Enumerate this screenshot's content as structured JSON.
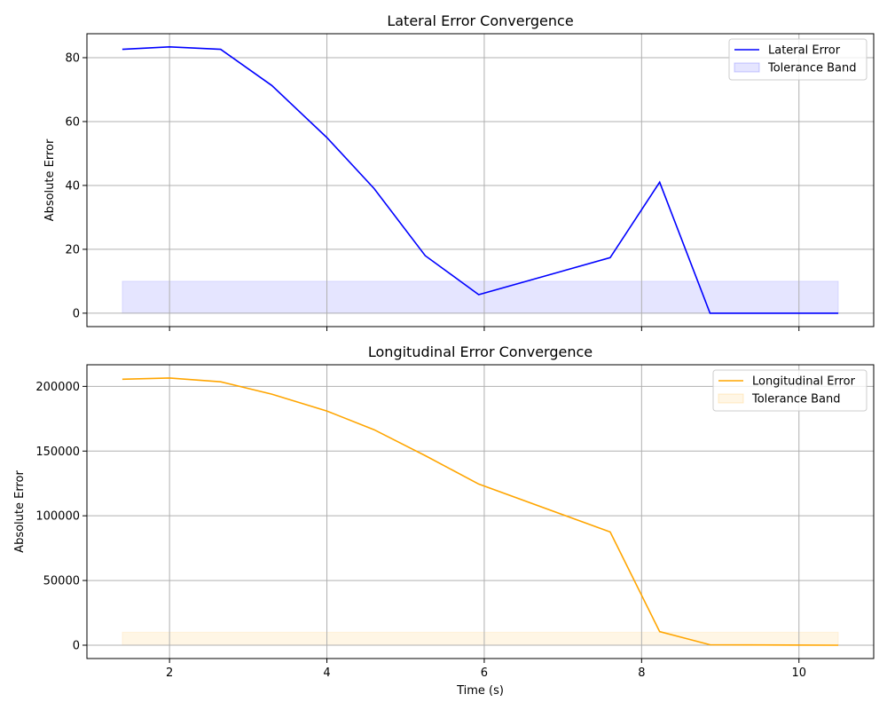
{
  "chart_data": [
    {
      "type": "line",
      "title": "Lateral Error Convergence",
      "xlabel": "",
      "ylabel": "Absolute Error",
      "xlim": [
        0.95,
        10.95
      ],
      "ylim": [
        -4.2,
        87.5
      ],
      "xticks": [
        2,
        4,
        6,
        8,
        10
      ],
      "xtick_labels": [
        "",
        "",
        "",
        "",
        ""
      ],
      "yticks": [
        0,
        20,
        40,
        60,
        80
      ],
      "ytick_labels": [
        "0",
        "20",
        "40",
        "60",
        "80"
      ],
      "grid": true,
      "legend": "top-right",
      "x": [
        1.4,
        2.0,
        2.65,
        3.3,
        4.0,
        4.6,
        5.25,
        5.93,
        7.6,
        8.23,
        8.87,
        10.5
      ],
      "series": [
        {
          "name": "Lateral Error",
          "color": "#0000ff",
          "values": [
            82.6,
            83.4,
            82.6,
            71.3,
            55.0,
            39.0,
            18.0,
            5.8,
            17.4,
            41.0,
            0.0,
            0.0
          ]
        }
      ],
      "band": {
        "name": "Tolerance Band",
        "color": "#0000ff",
        "opacity": 0.1,
        "x": [
          1.4,
          10.5
        ],
        "y": [
          0,
          10
        ]
      }
    },
    {
      "type": "line",
      "title": "Longitudinal Error Convergence",
      "xlabel": "Time (s)",
      "ylabel": "Absolute Error",
      "xlim": [
        0.95,
        10.95
      ],
      "ylim": [
        -10300,
        216700
      ],
      "xticks": [
        2,
        4,
        6,
        8,
        10
      ],
      "xtick_labels": [
        "2",
        "4",
        "6",
        "8",
        "10"
      ],
      "yticks": [
        0,
        50000,
        100000,
        150000,
        200000
      ],
      "ytick_labels": [
        "0",
        "50000",
        "100000",
        "150000",
        "200000"
      ],
      "grid": true,
      "legend": "top-right",
      "x": [
        1.4,
        2.0,
        2.65,
        3.3,
        4.0,
        4.6,
        5.25,
        5.93,
        7.6,
        8.23,
        8.87,
        10.5
      ],
      "series": [
        {
          "name": "Longitudinal Error",
          "color": "#ffa500",
          "values": [
            205500,
            206500,
            203500,
            194000,
            181000,
            166500,
            146500,
            124500,
            87500,
            10500,
            300,
            0
          ]
        }
      ],
      "band": {
        "name": "Tolerance Band",
        "color": "#ffa500",
        "opacity": 0.1,
        "x": [
          1.4,
          10.5
        ],
        "y": [
          0,
          10000
        ]
      }
    }
  ]
}
